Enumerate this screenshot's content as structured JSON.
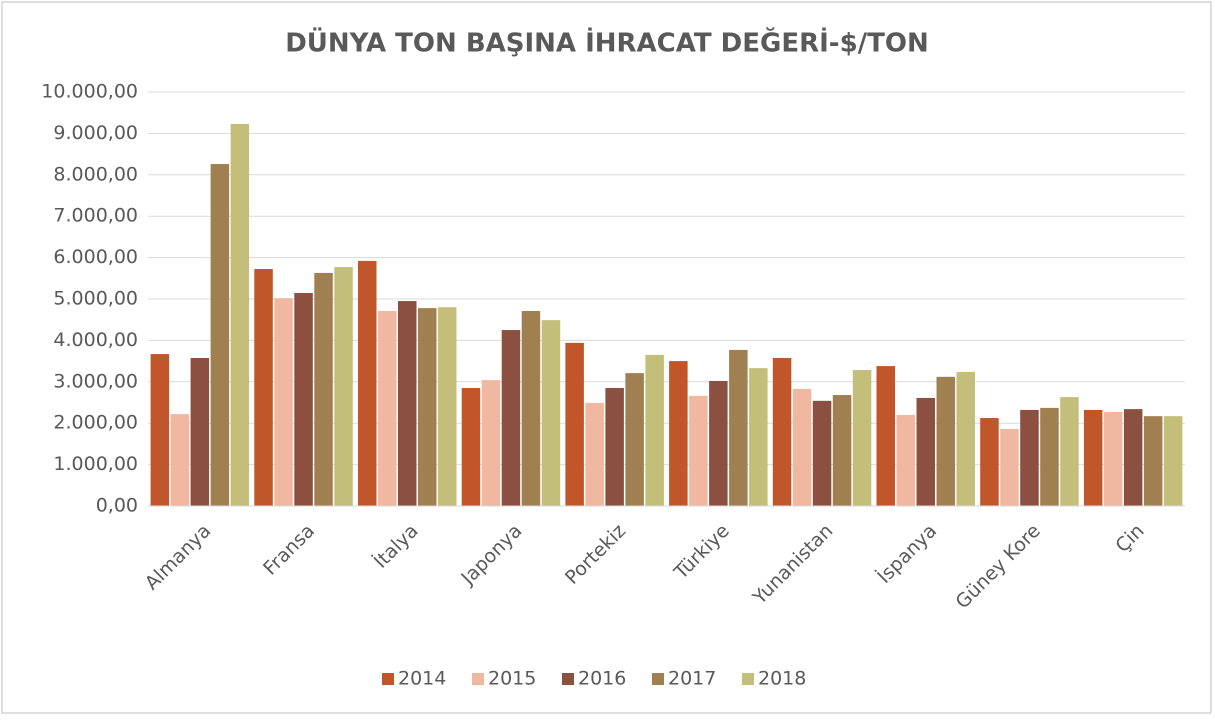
{
  "chart_data": {
    "type": "bar",
    "title": "DÜNYA TON BAŞINA İHRACAT DEĞERİ-$/TON",
    "categories": [
      "Almanya",
      "Fransa",
      "İtalya",
      "Japonya",
      "Portekiz",
      "Türkiye",
      "Yunanistan",
      "İspanya",
      "Güney Kore",
      "Çin"
    ],
    "series": [
      {
        "name": "2014",
        "color": "#c0562a",
        "values": [
          3670,
          5725,
          5920,
          2850,
          3940,
          3500,
          3575,
          3380,
          2125,
          2320
        ]
      },
      {
        "name": "2015",
        "color": "#f0b8a0",
        "values": [
          2220,
          5020,
          4710,
          3040,
          2490,
          2660,
          2830,
          2200,
          1860,
          2270
        ]
      },
      {
        "name": "2016",
        "color": "#8b5040",
        "values": [
          3575,
          5145,
          4950,
          4250,
          2850,
          3020,
          2540,
          2610,
          2320,
          2340
        ]
      },
      {
        "name": "2017",
        "color": "#a08050",
        "values": [
          8260,
          5630,
          4780,
          4710,
          3210,
          3770,
          2680,
          3120,
          2370,
          2170
        ]
      },
      {
        "name": "2018",
        "color": "#c3bf7a",
        "values": [
          9230,
          5770,
          4800,
          4490,
          3650,
          3330,
          3285,
          3240,
          2630,
          2170
        ]
      }
    ],
    "ylim": [
      0,
      10000
    ],
    "yticks": [
      {
        "value": 0,
        "label": "0,00"
      },
      {
        "value": 1000,
        "label": "1.000,00"
      },
      {
        "value": 2000,
        "label": "2.000,00"
      },
      {
        "value": 3000,
        "label": "3.000,00"
      },
      {
        "value": 4000,
        "label": "4.000,00"
      },
      {
        "value": 5000,
        "label": "5.000,00"
      },
      {
        "value": 6000,
        "label": "6.000,00"
      },
      {
        "value": 7000,
        "label": "7.000,00"
      },
      {
        "value": 8000,
        "label": "8.000,00"
      },
      {
        "value": 9000,
        "label": "9.000,00"
      },
      {
        "value": 10000,
        "label": "10.000,00"
      }
    ],
    "grid": true,
    "legend": "bottom"
  }
}
